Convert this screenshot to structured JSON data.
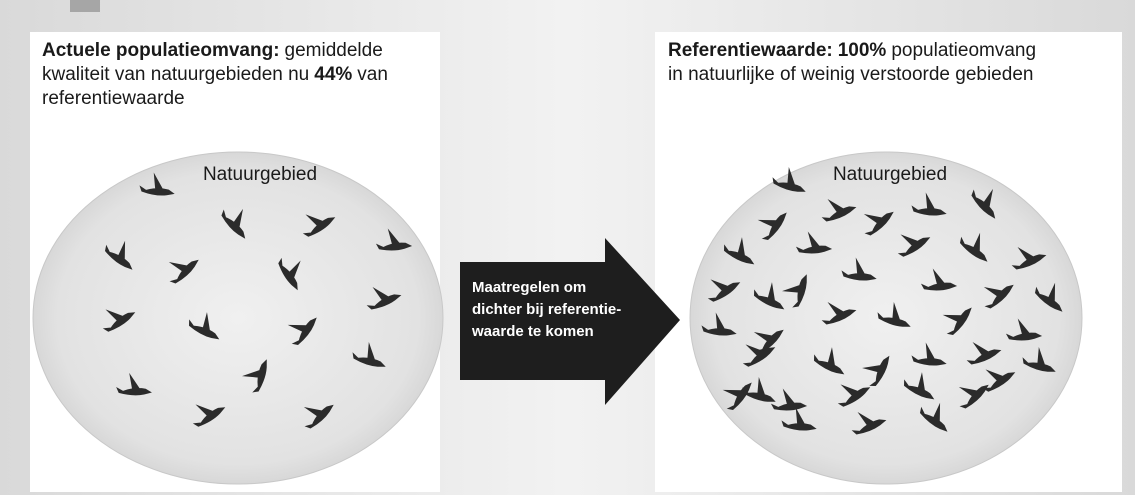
{
  "left_panel": {
    "title_lines": [
      [
        {
          "text": "Actuele populatieomvang:",
          "bold": true
        },
        {
          "text": "gemiddelde",
          "bold": false
        }
      ],
      [
        {
          "text": "kwaliteit van natuurgebieden nu",
          "bold": false
        },
        {
          "text": "44%",
          "bold": true
        },
        {
          "text": "van",
          "bold": false
        }
      ],
      [
        {
          "text": "referentiewaarde",
          "bold": false
        }
      ]
    ],
    "area_label": "Natuurgebied"
  },
  "arrow": {
    "lines": [
      "Maatregelen om",
      "dichter bij referentie-",
      "waarde te komen"
    ]
  },
  "right_panel": {
    "title_lines": [
      [
        {
          "text": "Referentiewaarde:",
          "bold": true
        },
        {
          "text": "100%",
          "bold": true
        },
        {
          "text": "populatieomvang",
          "bold": false
        }
      ],
      [
        {
          "text": "in natuurlijke of weinig verstoorde gebieden",
          "bold": false
        }
      ]
    ],
    "area_label": "Natuurgebied"
  }
}
